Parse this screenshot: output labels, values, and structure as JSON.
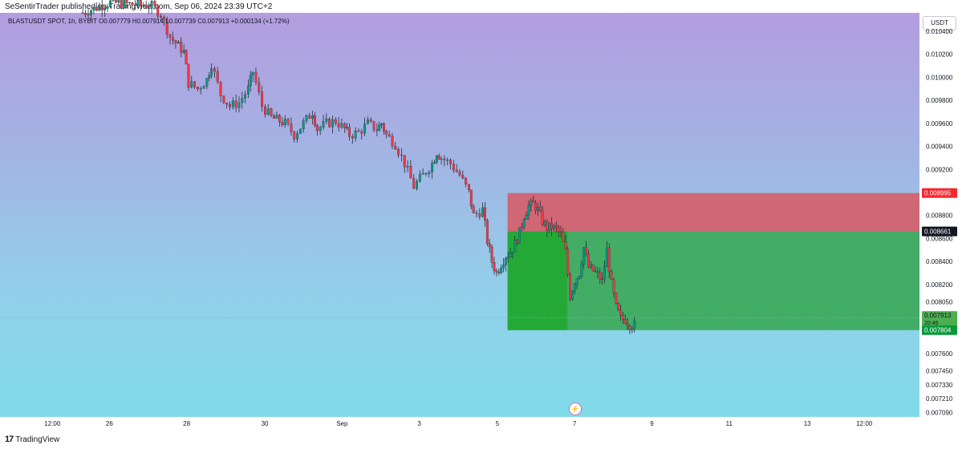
{
  "header": {
    "published": "SeSentirTrader published on TradingView.com, Sep 06, 2024 23:39 UTC+2",
    "symbol_info": "BLASTUSDT SPOT, 1h, BYBIT  O0.007779  H0.007914  L0.007739  C0.007913  +0.000134 (+1.72%)"
  },
  "currency_button": "USDT",
  "footer": {
    "logo": "17",
    "brand": "TradingView"
  },
  "event_icon": "lightning-icon",
  "colors": {
    "bull": "#089981",
    "bear": "#f23645",
    "stop_zone": "#d4606b",
    "target_zone": "#3aa857",
    "entry_label": "#131722",
    "stop_label": "#f7262e",
    "target_label": "#089a3a"
  },
  "chart_data": {
    "type": "candlestick",
    "symbol": "BLASTUSDT SPOT",
    "interval": "1h",
    "exchange": "BYBIT",
    "ylim": [
      0.00705,
      0.01056
    ],
    "price_ticks": [
      0.0104,
      0.0102,
      0.01,
      0.0098,
      0.0096,
      0.0094,
      0.0092,
      0.0088,
      0.0086,
      0.0084,
      0.0082,
      0.00805,
      0.0076,
      0.00745,
      0.00733,
      0.00721,
      0.00709
    ],
    "price_tick_labels": [
      "0.010400",
      "0.010200",
      "0.010000",
      "0.009800",
      "0.009600",
      "0.009400",
      "0.009200",
      "0.008800",
      "0.008600",
      "0.008400",
      "0.008200",
      "0.008050",
      "0.007600",
      "0.007450",
      "0.007330",
      "0.007210",
      "0.007090"
    ],
    "time_labels": [
      "12:00",
      "26",
      "28",
      "30",
      "Sep",
      "3",
      "5",
      "7",
      "9",
      "11",
      "13",
      "12:00"
    ],
    "price_path": [
      [
        0.09,
        0.01056
      ],
      [
        0.12,
        0.01065
      ],
      [
        0.165,
        0.01062
      ],
      [
        0.175,
        0.01055
      ],
      [
        0.185,
        0.01035
      ],
      [
        0.2,
        0.01022
      ],
      [
        0.205,
        0.00995
      ],
      [
        0.215,
        0.0099
      ],
      [
        0.225,
        0.00998
      ],
      [
        0.23,
        0.01012
      ],
      [
        0.24,
        0.00985
      ],
      [
        0.25,
        0.00975
      ],
      [
        0.26,
        0.00978
      ],
      [
        0.27,
        0.0099
      ],
      [
        0.275,
        0.01005
      ],
      [
        0.285,
        0.00975
      ],
      [
        0.295,
        0.00965
      ],
      [
        0.31,
        0.0096
      ],
      [
        0.32,
        0.0095
      ],
      [
        0.33,
        0.0096
      ],
      [
        0.34,
        0.0097
      ],
      [
        0.345,
        0.00955
      ],
      [
        0.355,
        0.0096
      ],
      [
        0.365,
        0.00962
      ],
      [
        0.375,
        0.00955
      ],
      [
        0.38,
        0.0095
      ],
      [
        0.39,
        0.00952
      ],
      [
        0.4,
        0.0096
      ],
      [
        0.41,
        0.00955
      ],
      [
        0.415,
        0.0096
      ],
      [
        0.42,
        0.0095
      ],
      [
        0.43,
        0.00942
      ],
      [
        0.44,
        0.00925
      ],
      [
        0.45,
        0.00905
      ],
      [
        0.46,
        0.00915
      ],
      [
        0.47,
        0.00925
      ],
      [
        0.475,
        0.00935
      ],
      [
        0.48,
        0.0093
      ],
      [
        0.49,
        0.00925
      ],
      [
        0.5,
        0.00915
      ],
      [
        0.51,
        0.009
      ],
      [
        0.515,
        0.0088
      ],
      [
        0.525,
        0.00885
      ],
      [
        0.53,
        0.00858
      ],
      [
        0.535,
        0.0084
      ],
      [
        0.54,
        0.0083
      ],
      [
        0.545,
        0.00838
      ],
      [
        0.55,
        0.00845
      ],
      [
        0.555,
        0.00848
      ],
      [
        0.56,
        0.00855
      ],
      [
        0.565,
        0.00865
      ],
      [
        0.57,
        0.0088
      ],
      [
        0.575,
        0.00888
      ],
      [
        0.58,
        0.0089
      ],
      [
        0.585,
        0.00885
      ],
      [
        0.59,
        0.00875
      ],
      [
        0.595,
        0.00869
      ],
      [
        0.6,
        0.0087
      ],
      [
        0.605,
        0.00868
      ],
      [
        0.61,
        0.00863
      ],
      [
        0.615,
        0.00848
      ],
      [
        0.62,
        0.0081
      ],
      [
        0.625,
        0.00823
      ],
      [
        0.63,
        0.0083
      ],
      [
        0.635,
        0.00852
      ],
      [
        0.64,
        0.00835
      ],
      [
        0.645,
        0.00832
      ],
      [
        0.65,
        0.00828
      ],
      [
        0.655,
        0.00823
      ],
      [
        0.66,
        0.0085
      ],
      [
        0.665,
        0.0082
      ],
      [
        0.67,
        0.008
      ],
      [
        0.675,
        0.0079
      ],
      [
        0.68,
        0.0079
      ],
      [
        0.685,
        0.00785
      ],
      [
        0.69,
        0.00785
      ]
    ],
    "position": {
      "type": "short",
      "entry": 0.008661,
      "stop": 0.008995,
      "target": 0.007804
    },
    "last_price": 0.007913,
    "countdown": "20:46",
    "price_labels": [
      "0.008995",
      "0.008661",
      "0.007913",
      "0.007804"
    ]
  }
}
